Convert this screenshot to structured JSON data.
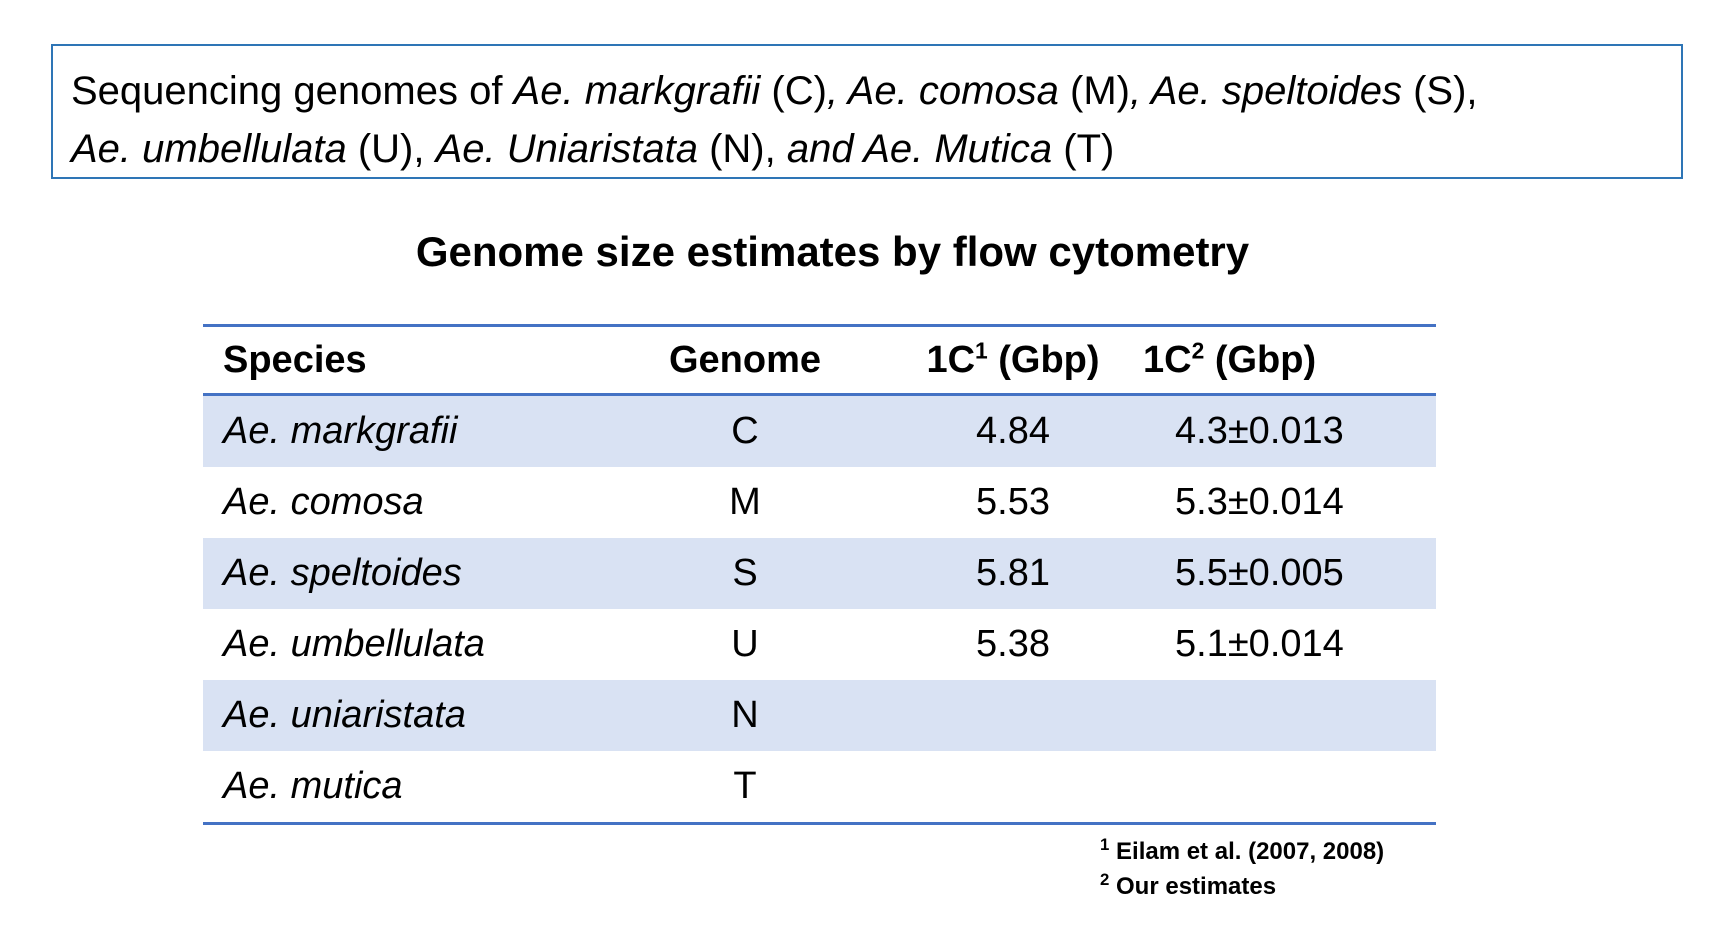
{
  "intro": {
    "line1": [
      {
        "text": "Sequencing genomes of ",
        "italic": false
      },
      {
        "text": "Ae. markgrafii",
        "italic": true
      },
      {
        "text": " (C)",
        "italic": false
      },
      {
        "text": ", Ae. comosa",
        "italic": true
      },
      {
        "text": " (M)",
        "italic": false
      },
      {
        "text": ", Ae. speltoides",
        "italic": true
      },
      {
        "text": " (S),",
        "italic": false
      }
    ],
    "line2": [
      {
        "text": "Ae. umbellulata",
        "italic": true
      },
      {
        "text": " (U), ",
        "italic": false
      },
      {
        "text": "Ae. Uniaristata",
        "italic": true
      },
      {
        "text": " (N),  ",
        "italic": false
      },
      {
        "text": "and Ae. Mutica",
        "italic": true
      },
      {
        "text": " (T)",
        "italic": false
      }
    ]
  },
  "table": {
    "title": "Genome size estimates by flow cytometry",
    "headers": {
      "species": "Species",
      "genome": "Genome",
      "c1_base": "1C",
      "c1_sup": "1",
      "c1_unit": " (Gbp)",
      "c2_base": "1C",
      "c2_sup": "2",
      "c2_unit": " (Gbp)"
    },
    "rows": [
      {
        "species": "Ae. markgrafii",
        "genome": "C",
        "c1": "4.84",
        "c2": "4.3±0.013"
      },
      {
        "species": "Ae. comosa",
        "genome": "M",
        "c1": "5.53",
        "c2": "5.3±0.014"
      },
      {
        "species": "Ae. speltoides",
        "genome": "S",
        "c1": "5.81",
        "c2": "5.5±0.005"
      },
      {
        "species": "Ae. umbellulata",
        "genome": "U",
        "c1": "5.38",
        "c2": "5.1±0.014"
      },
      {
        "species": "Ae. uniaristata",
        "genome": "N",
        "c1": "",
        "c2": ""
      },
      {
        "species": "Ae. mutica",
        "genome": "T",
        "c1": "",
        "c2": ""
      }
    ]
  },
  "footnotes": [
    {
      "mark": "1",
      "text": " Eilam et al. (2007, 2008)"
    },
    {
      "mark": "2",
      "text": " Our estimates"
    }
  ],
  "colors": {
    "box_border": "#2e75b6",
    "table_rule": "#4472c4",
    "row_shade": "#d9e2f3"
  }
}
